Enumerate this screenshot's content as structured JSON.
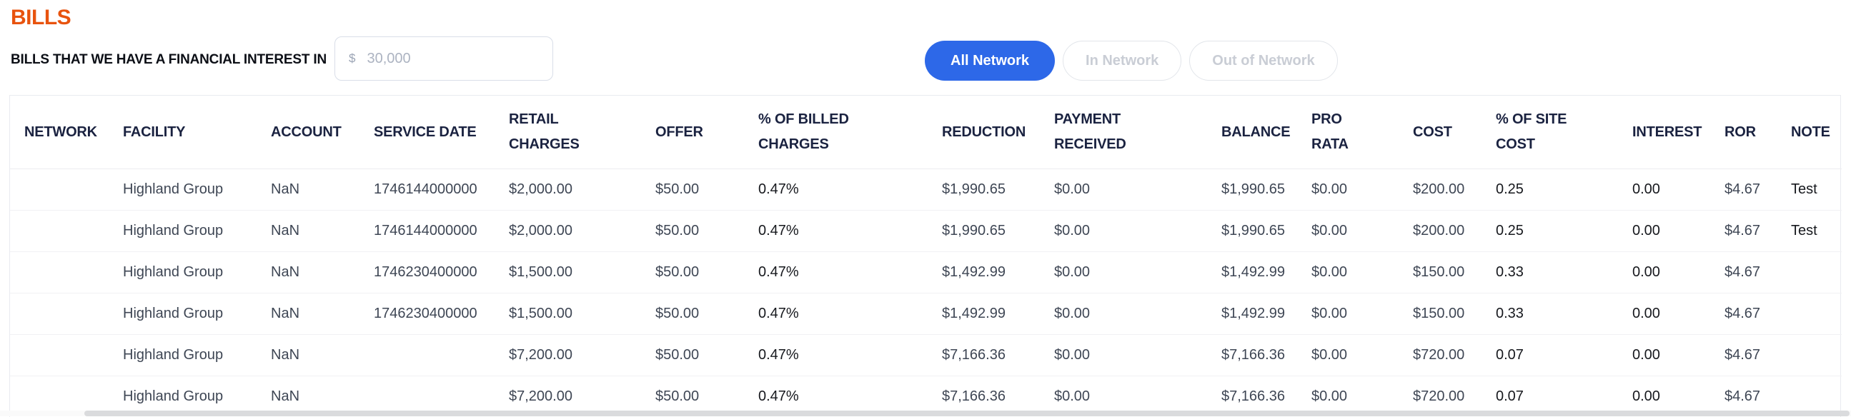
{
  "page": {
    "title": "BILLS",
    "subtitle": "BILLS THAT WE HAVE A FINANCIAL INTEREST IN"
  },
  "filter": {
    "currency_symbol": "$",
    "placeholder": "30,000",
    "value": ""
  },
  "network_tabs": [
    {
      "label": "All Network",
      "active": true
    },
    {
      "label": "In Network",
      "active": false
    },
    {
      "label": "Out of Network",
      "active": false
    }
  ],
  "colors": {
    "accent_orange": "#E8530E",
    "active_tab_blue": "#2D68E8",
    "header_text": "#1A2240",
    "cell_text": "#3E4654",
    "cell_text_dark": "#16181D"
  },
  "table": {
    "columns": [
      {
        "key": "network",
        "label": "NETWORK"
      },
      {
        "key": "facility",
        "label": "FACILITY"
      },
      {
        "key": "account",
        "label": "ACCOUNT"
      },
      {
        "key": "service_date",
        "label": "SERVICE DATE"
      },
      {
        "key": "retail_charges",
        "label": "RETAIL CHARGES"
      },
      {
        "key": "offer",
        "label": "OFFER"
      },
      {
        "key": "pct_billed",
        "label": "% OF BILLED CHARGES"
      },
      {
        "key": "reduction",
        "label": "REDUCTION"
      },
      {
        "key": "payment_received",
        "label": "PAYMENT RECEIVED"
      },
      {
        "key": "balance",
        "label": "BALANCE"
      },
      {
        "key": "pro_rata",
        "label": "PRO RATA"
      },
      {
        "key": "cost",
        "label": "COST"
      },
      {
        "key": "pct_site_cost",
        "label": "% OF SITE COST"
      },
      {
        "key": "interest",
        "label": "INTEREST"
      },
      {
        "key": "ror",
        "label": "ROR"
      },
      {
        "key": "note",
        "label": "NOTE"
      }
    ],
    "rows": [
      {
        "network": "",
        "facility": "Highland Group",
        "account": "NaN",
        "service_date": "1746144000000",
        "retail_charges": "$2,000.00",
        "offer": "$50.00",
        "pct_billed": "0.47%",
        "reduction": "$1,990.65",
        "payment_received": "$0.00",
        "balance": "$1,990.65",
        "pro_rata": "$0.00",
        "cost": "$200.00",
        "pct_site_cost": "0.25",
        "interest": "0.00",
        "ror": "$4.67",
        "note": "Test"
      },
      {
        "network": "",
        "facility": "Highland Group",
        "account": "NaN",
        "service_date": "1746144000000",
        "retail_charges": "$2,000.00",
        "offer": "$50.00",
        "pct_billed": "0.47%",
        "reduction": "$1,990.65",
        "payment_received": "$0.00",
        "balance": "$1,990.65",
        "pro_rata": "$0.00",
        "cost": "$200.00",
        "pct_site_cost": "0.25",
        "interest": "0.00",
        "ror": "$4.67",
        "note": "Test"
      },
      {
        "network": "",
        "facility": "Highland Group",
        "account": "NaN",
        "service_date": "1746230400000",
        "retail_charges": "$1,500.00",
        "offer": "$50.00",
        "pct_billed": "0.47%",
        "reduction": "$1,492.99",
        "payment_received": "$0.00",
        "balance": "$1,492.99",
        "pro_rata": "$0.00",
        "cost": "$150.00",
        "pct_site_cost": "0.33",
        "interest": "0.00",
        "ror": "$4.67",
        "note": ""
      },
      {
        "network": "",
        "facility": "Highland Group",
        "account": "NaN",
        "service_date": "1746230400000",
        "retail_charges": "$1,500.00",
        "offer": "$50.00",
        "pct_billed": "0.47%",
        "reduction": "$1,492.99",
        "payment_received": "$0.00",
        "balance": "$1,492.99",
        "pro_rata": "$0.00",
        "cost": "$150.00",
        "pct_site_cost": "0.33",
        "interest": "0.00",
        "ror": "$4.67",
        "note": ""
      },
      {
        "network": "",
        "facility": "Highland Group",
        "account": "NaN",
        "service_date": "",
        "retail_charges": "$7,200.00",
        "offer": "$50.00",
        "pct_billed": "0.47%",
        "reduction": "$7,166.36",
        "payment_received": "$0.00",
        "balance": "$7,166.36",
        "pro_rata": "$0.00",
        "cost": "$720.00",
        "pct_site_cost": "0.07",
        "interest": "0.00",
        "ror": "$4.67",
        "note": ""
      },
      {
        "network": "",
        "facility": "Highland Group",
        "account": "NaN",
        "service_date": "",
        "retail_charges": "$7,200.00",
        "offer": "$50.00",
        "pct_billed": "0.47%",
        "reduction": "$7,166.36",
        "payment_received": "$0.00",
        "balance": "$7,166.36",
        "pro_rata": "$0.00",
        "cost": "$720.00",
        "pct_site_cost": "0.07",
        "interest": "0.00",
        "ror": "$4.67",
        "note": ""
      }
    ]
  }
}
